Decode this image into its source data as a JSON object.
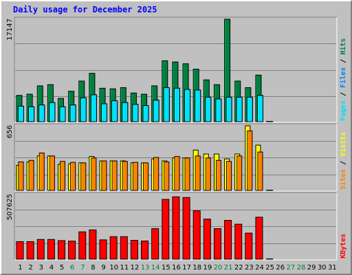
{
  "title": "Daily usage for December 2025",
  "colors": {
    "hits": "#008040",
    "files": "#0080ff",
    "pages": "#00e0ff",
    "visits": "#ffff00",
    "sites": "#ff8000",
    "kbytes": "#ff0000",
    "weekend_label": "#008040",
    "weekday_label": "#000000",
    "panel_bg": "#c0c0c0"
  },
  "chart_data": [
    {
      "type": "bar",
      "panel": "pages-files-hits",
      "ymax_label": "17147",
      "ylim": [
        0,
        17147
      ],
      "legend": [
        {
          "text": "Pages",
          "color": "#00e0ff"
        },
        {
          "text": " / ",
          "color": "#000000"
        },
        {
          "text": "Files",
          "color": "#0080ff"
        },
        {
          "text": " / ",
          "color": "#000000"
        },
        {
          "text": "Hits",
          "color": "#008040"
        }
      ],
      "categories": [
        "1",
        "2",
        "3",
        "4",
        "5",
        "6",
        "7",
        "8",
        "9",
        "10",
        "11",
        "12",
        "13",
        "14",
        "15",
        "16",
        "17",
        "18",
        "19",
        "20",
        "21",
        "22",
        "23",
        "24",
        "25",
        "26",
        "27",
        "28",
        "29",
        "30",
        "31"
      ],
      "series": [
        {
          "name": "Hits",
          "values": [
            4400,
            4600,
            6000,
            6200,
            3900,
            5100,
            6800,
            8100,
            5600,
            5500,
            5700,
            4800,
            4600,
            6000,
            10200,
            10000,
            9700,
            8800,
            7000,
            6200,
            17147,
            6800,
            5700,
            7800,
            0,
            0,
            0,
            0,
            0,
            0,
            0
          ]
        },
        {
          "name": "Files",
          "values": [
            2600,
            2500,
            2800,
            3200,
            2500,
            2800,
            4000,
            4500,
            3000,
            3500,
            3200,
            2900,
            2700,
            3600,
            5700,
            5600,
            5400,
            5300,
            4100,
            3800,
            4100,
            4100,
            4100,
            4400,
            0,
            0,
            0,
            0,
            0,
            0,
            0
          ]
        },
        {
          "name": "Pages",
          "values": [
            2600,
            2500,
            2800,
            3200,
            2500,
            2800,
            4000,
            4500,
            3000,
            3500,
            3200,
            2900,
            2700,
            3600,
            5700,
            5600,
            5400,
            5300,
            4100,
            3800,
            4100,
            4100,
            4100,
            4400,
            0,
            0,
            0,
            0,
            0,
            0,
            0
          ]
        }
      ]
    },
    {
      "type": "bar",
      "panel": "sites-visits",
      "ymax_label": "656",
      "ylim": [
        0,
        656
      ],
      "legend": [
        {
          "text": "Sites",
          "color": "#ff8000"
        },
        {
          "text": " / ",
          "color": "#000000"
        },
        {
          "text": "Visits",
          "color": "#ffff00"
        }
      ],
      "categories": [
        "1",
        "2",
        "3",
        "4",
        "5",
        "6",
        "7",
        "8",
        "9",
        "10",
        "11",
        "12",
        "13",
        "14",
        "15",
        "16",
        "17",
        "18",
        "19",
        "20",
        "21",
        "22",
        "23",
        "24",
        "25",
        "26",
        "27",
        "28",
        "29",
        "30",
        "31"
      ],
      "series": [
        {
          "name": "Visits",
          "values": [
            255,
            290,
            350,
            350,
            265,
            270,
            280,
            345,
            300,
            300,
            300,
            280,
            280,
            320,
            300,
            330,
            330,
            410,
            370,
            370,
            320,
            370,
            656,
            460,
            0,
            0,
            0,
            0,
            0,
            0,
            0
          ]
        },
        {
          "name": "Sites",
          "values": [
            290,
            305,
            380,
            350,
            295,
            285,
            280,
            330,
            300,
            300,
            295,
            285,
            280,
            335,
            290,
            345,
            330,
            350,
            330,
            305,
            295,
            350,
            605,
            390,
            0,
            0,
            0,
            0,
            0,
            0,
            0
          ]
        }
      ]
    },
    {
      "type": "bar",
      "panel": "kbytes",
      "ymax_label": "507625",
      "ylim": [
        0,
        507625
      ],
      "legend": [
        {
          "text": "KBytes",
          "color": "#ff0000"
        }
      ],
      "categories": [
        "1",
        "2",
        "3",
        "4",
        "5",
        "6",
        "7",
        "8",
        "9",
        "10",
        "11",
        "12",
        "13",
        "14",
        "15",
        "16",
        "17",
        "18",
        "19",
        "20",
        "21",
        "22",
        "23",
        "24",
        "25",
        "26",
        "27",
        "28",
        "29",
        "30",
        "31"
      ],
      "series": [
        {
          "name": "KBytes",
          "values": [
            138000,
            138000,
            155000,
            155000,
            146000,
            142000,
            215000,
            230000,
            152000,
            177000,
            177000,
            148000,
            143000,
            240000,
            470000,
            490000,
            485000,
            380000,
            315000,
            240000,
            305000,
            275000,
            205000,
            330000,
            0,
            0,
            0,
            0,
            0,
            0,
            0
          ]
        }
      ]
    }
  ],
  "x_axis": {
    "labels": [
      "1",
      "2",
      "3",
      "4",
      "5",
      "6",
      "7",
      "8",
      "9",
      "10",
      "11",
      "12",
      "13",
      "14",
      "15",
      "16",
      "17",
      "18",
      "19",
      "20",
      "21",
      "22",
      "23",
      "24",
      "25",
      "26",
      "27",
      "28",
      "29",
      "30",
      "31"
    ],
    "weekend": [
      false,
      false,
      false,
      false,
      false,
      true,
      true,
      false,
      false,
      false,
      false,
      false,
      true,
      true,
      false,
      false,
      false,
      false,
      false,
      true,
      true,
      false,
      false,
      false,
      false,
      false,
      true,
      true,
      false,
      false,
      false
    ]
  }
}
